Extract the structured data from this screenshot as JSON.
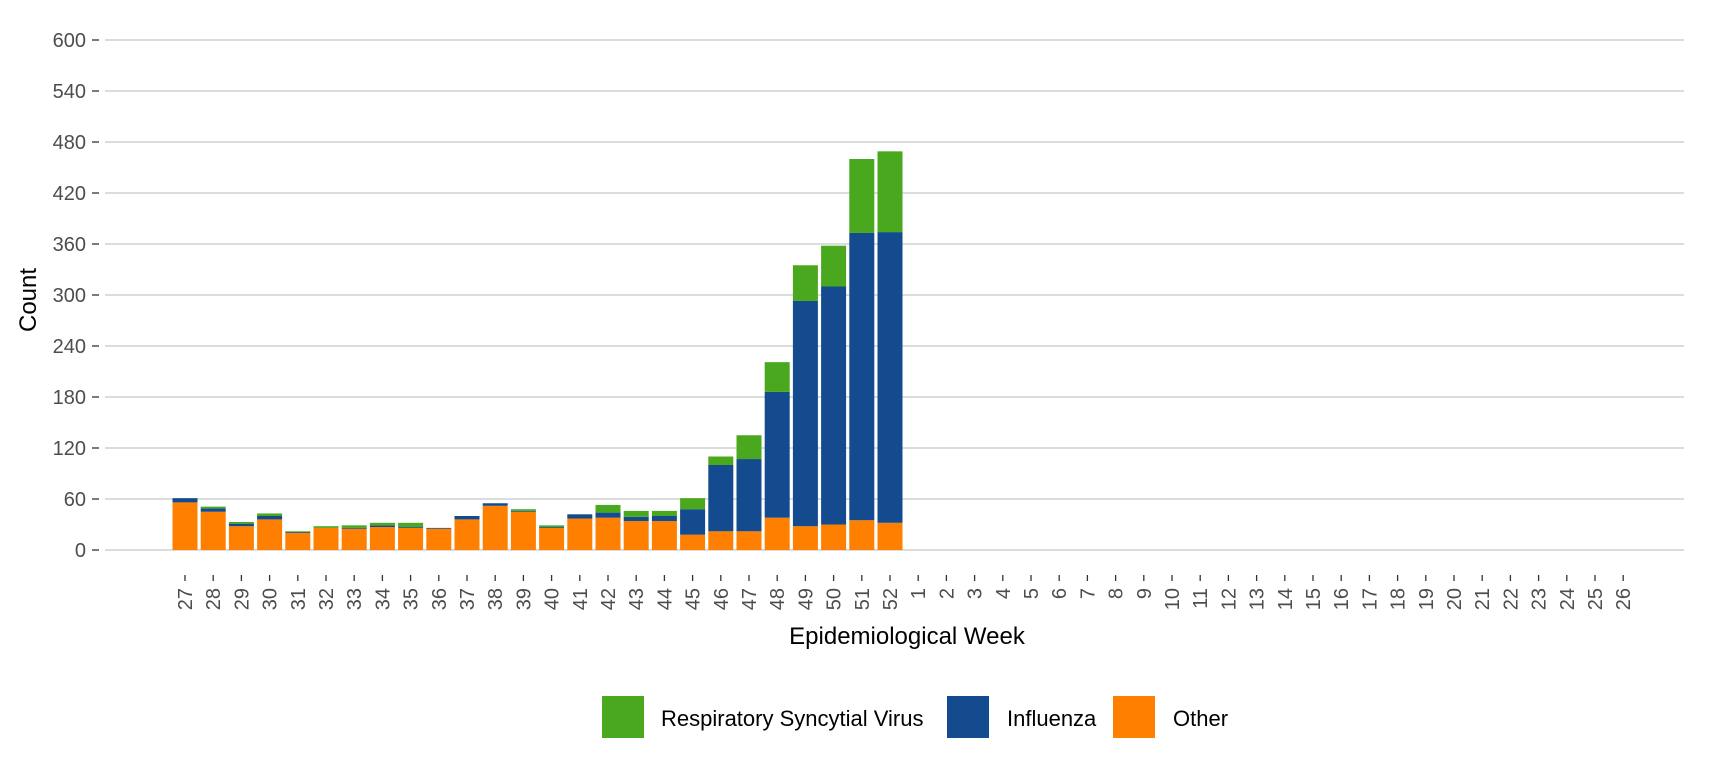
{
  "chart_data": {
    "type": "bar",
    "stacked": true,
    "xlabel": "Epidemiological Week",
    "ylabel": "Count",
    "ylim": [
      0,
      600
    ],
    "yticks": [
      0,
      60,
      120,
      180,
      240,
      300,
      360,
      420,
      480,
      540,
      600
    ],
    "grid": "horizontal",
    "legend_position": "bottom",
    "categories": [
      "27",
      "28",
      "29",
      "30",
      "31",
      "32",
      "33",
      "34",
      "35",
      "36",
      "37",
      "38",
      "39",
      "40",
      "41",
      "42",
      "43",
      "44",
      "45",
      "46",
      "47",
      "48",
      "49",
      "50",
      "51",
      "52",
      "1",
      "2",
      "3",
      "4",
      "5",
      "6",
      "7",
      "8",
      "9",
      "10",
      "11",
      "12",
      "13",
      "14",
      "15",
      "16",
      "17",
      "18",
      "19",
      "20",
      "21",
      "22",
      "23",
      "24",
      "25",
      "26"
    ],
    "series": [
      {
        "name": "Other",
        "color": "#ff7f00",
        "values": [
          56,
          45,
          28,
          36,
          20,
          26,
          25,
          27,
          26,
          25,
          36,
          52,
          45,
          26,
          37,
          38,
          34,
          34,
          18,
          22,
          22,
          38,
          28,
          30,
          35,
          32,
          null,
          null,
          null,
          null,
          null,
          null,
          null,
          null,
          null,
          null,
          null,
          null,
          null,
          null,
          null,
          null,
          null,
          null,
          null,
          null,
          null,
          null,
          null,
          null,
          null,
          null
        ]
      },
      {
        "name": "Influenza",
        "color": "#134b8e",
        "values": [
          5,
          4,
          3,
          4,
          1,
          0,
          1,
          2,
          1,
          1,
          4,
          3,
          1,
          1,
          5,
          6,
          5,
          6,
          30,
          78,
          85,
          148,
          265,
          280,
          338,
          342,
          null,
          null,
          null,
          null,
          null,
          null,
          null,
          null,
          null,
          null,
          null,
          null,
          null,
          null,
          null,
          null,
          null,
          null,
          null,
          null,
          null,
          null,
          null,
          null,
          null,
          null
        ]
      },
      {
        "name": "Respiratory Syncytial Virus",
        "color": "#4aa81e",
        "values": [
          0,
          2,
          2,
          3,
          1,
          2,
          3,
          3,
          5,
          0,
          0,
          0,
          2,
          2,
          0,
          9,
          7,
          6,
          13,
          10,
          28,
          35,
          42,
          48,
          87,
          95,
          null,
          null,
          null,
          null,
          null,
          null,
          null,
          null,
          null,
          null,
          null,
          null,
          null,
          null,
          null,
          null,
          null,
          null,
          null,
          null,
          null,
          null,
          null,
          null,
          null,
          null
        ]
      }
    ],
    "legend": [
      {
        "name": "Respiratory Syncytial Virus",
        "color": "#4aa81e"
      },
      {
        "name": "Influenza",
        "color": "#134b8e"
      },
      {
        "name": "Other",
        "color": "#ff7f00"
      }
    ]
  }
}
